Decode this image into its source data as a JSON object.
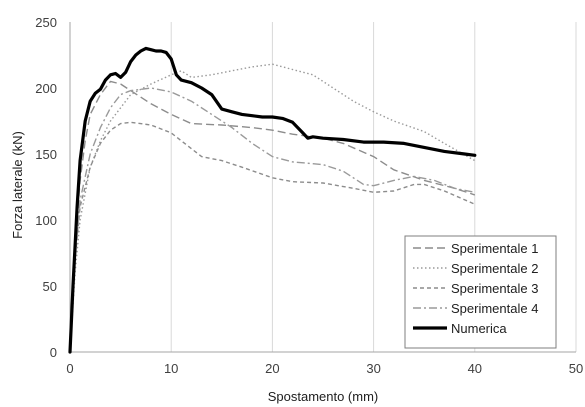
{
  "chart_data": {
    "type": "line",
    "xlabel": "Spostamento (mm)",
    "ylabel": "Forza laterale (kN)",
    "xlim": [
      0,
      50
    ],
    "ylim": [
      0,
      250
    ],
    "xticks": [
      "0",
      "10",
      "20",
      "30",
      "40",
      "50"
    ],
    "yticks": [
      "0",
      "50",
      "100",
      "150",
      "200",
      "250"
    ],
    "grid": "vertical",
    "legend_position": "bottom-right",
    "series": [
      {
        "name": "Sperimentale 1",
        "color": "#8c8c8c",
        "dash": "long-dash",
        "points": [
          [
            0,
            0
          ],
          [
            0.5,
            80
          ],
          [
            1,
            130
          ],
          [
            1.5,
            160
          ],
          [
            2,
            180
          ],
          [
            3,
            195
          ],
          [
            4,
            205
          ],
          [
            5,
            203
          ],
          [
            6,
            198
          ],
          [
            8,
            188
          ],
          [
            10,
            180
          ],
          [
            12,
            173
          ],
          [
            15,
            172
          ],
          [
            18,
            170
          ],
          [
            20,
            168
          ],
          [
            22,
            165
          ],
          [
            25,
            162
          ],
          [
            27,
            158
          ],
          [
            30,
            148
          ],
          [
            32,
            138
          ],
          [
            35,
            130
          ],
          [
            38,
            124
          ],
          [
            40,
            119
          ]
        ]
      },
      {
        "name": "Sperimentale 2",
        "color": "#9a9a9a",
        "dash": "dotted",
        "points": [
          [
            0,
            0
          ],
          [
            0.5,
            60
          ],
          [
            1,
            100
          ],
          [
            2,
            140
          ],
          [
            3,
            160
          ],
          [
            4,
            175
          ],
          [
            5,
            185
          ],
          [
            6,
            195
          ],
          [
            8,
            203
          ],
          [
            10,
            210
          ],
          [
            11,
            213
          ],
          [
            12,
            208
          ],
          [
            14,
            210
          ],
          [
            16,
            213
          ],
          [
            18,
            216
          ],
          [
            20,
            218
          ],
          [
            22,
            214
          ],
          [
            24,
            210
          ],
          [
            26,
            200
          ],
          [
            28,
            190
          ],
          [
            30,
            182
          ],
          [
            32,
            175
          ],
          [
            35,
            167
          ],
          [
            37,
            158
          ],
          [
            40,
            145
          ]
        ]
      },
      {
        "name": "Sperimentale 3",
        "color": "#8c8c8c",
        "dash": "short-dash",
        "points": [
          [
            0,
            0
          ],
          [
            0.5,
            70
          ],
          [
            1,
            110
          ],
          [
            2,
            140
          ],
          [
            3,
            158
          ],
          [
            4,
            168
          ],
          [
            5,
            173
          ],
          [
            6,
            174
          ],
          [
            8,
            172
          ],
          [
            10,
            166
          ],
          [
            11,
            160
          ],
          [
            13,
            148
          ],
          [
            15,
            145
          ],
          [
            17,
            140
          ],
          [
            20,
            132
          ],
          [
            22,
            129
          ],
          [
            25,
            128
          ],
          [
            28,
            124
          ],
          [
            30,
            121
          ],
          [
            32,
            122
          ],
          [
            34,
            127
          ],
          [
            35,
            127
          ],
          [
            37,
            122
          ],
          [
            40,
            112
          ]
        ]
      },
      {
        "name": "Sperimentale 4",
        "color": "#9a9a9a",
        "dash": "dash-dot",
        "points": [
          [
            0,
            0
          ],
          [
            0.5,
            70
          ],
          [
            1,
            115
          ],
          [
            2,
            150
          ],
          [
            3,
            170
          ],
          [
            4,
            185
          ],
          [
            5,
            195
          ],
          [
            6,
            198
          ],
          [
            8,
            200
          ],
          [
            10,
            197
          ],
          [
            12,
            190
          ],
          [
            14,
            180
          ],
          [
            16,
            170
          ],
          [
            18,
            158
          ],
          [
            20,
            148
          ],
          [
            22,
            144
          ],
          [
            25,
            142
          ],
          [
            27,
            137
          ],
          [
            29,
            127
          ],
          [
            30,
            126
          ],
          [
            32,
            130
          ],
          [
            34,
            133
          ],
          [
            36,
            130
          ],
          [
            38,
            124
          ],
          [
            40,
            121
          ]
        ]
      },
      {
        "name": "Numerica",
        "color": "#000000",
        "dash": "solid",
        "points": [
          [
            0,
            0
          ],
          [
            0.3,
            50
          ],
          [
            0.7,
            110
          ],
          [
            1,
            145
          ],
          [
            1.5,
            175
          ],
          [
            2,
            190
          ],
          [
            2.5,
            196
          ],
          [
            3,
            199
          ],
          [
            3.5,
            206
          ],
          [
            4,
            210
          ],
          [
            4.5,
            211
          ],
          [
            5,
            208
          ],
          [
            5.5,
            212
          ],
          [
            6,
            220
          ],
          [
            6.5,
            225
          ],
          [
            7,
            228
          ],
          [
            7.5,
            230
          ],
          [
            8,
            229
          ],
          [
            8.5,
            228
          ],
          [
            9,
            228
          ],
          [
            9.5,
            227
          ],
          [
            10,
            222
          ],
          [
            10.5,
            210
          ],
          [
            11,
            206
          ],
          [
            12,
            204
          ],
          [
            13,
            200
          ],
          [
            14,
            195
          ],
          [
            15,
            184
          ],
          [
            16,
            182
          ],
          [
            17,
            180
          ],
          [
            18,
            179
          ],
          [
            19,
            178
          ],
          [
            20,
            178
          ],
          [
            21,
            177
          ],
          [
            22,
            174
          ],
          [
            23,
            166
          ],
          [
            23.5,
            162
          ],
          [
            24,
            163
          ],
          [
            25,
            162
          ],
          [
            27,
            161
          ],
          [
            29,
            159
          ],
          [
            31,
            159
          ],
          [
            33,
            158
          ],
          [
            35,
            155
          ],
          [
            37,
            152
          ],
          [
            39,
            150
          ],
          [
            40,
            149
          ]
        ]
      }
    ]
  }
}
